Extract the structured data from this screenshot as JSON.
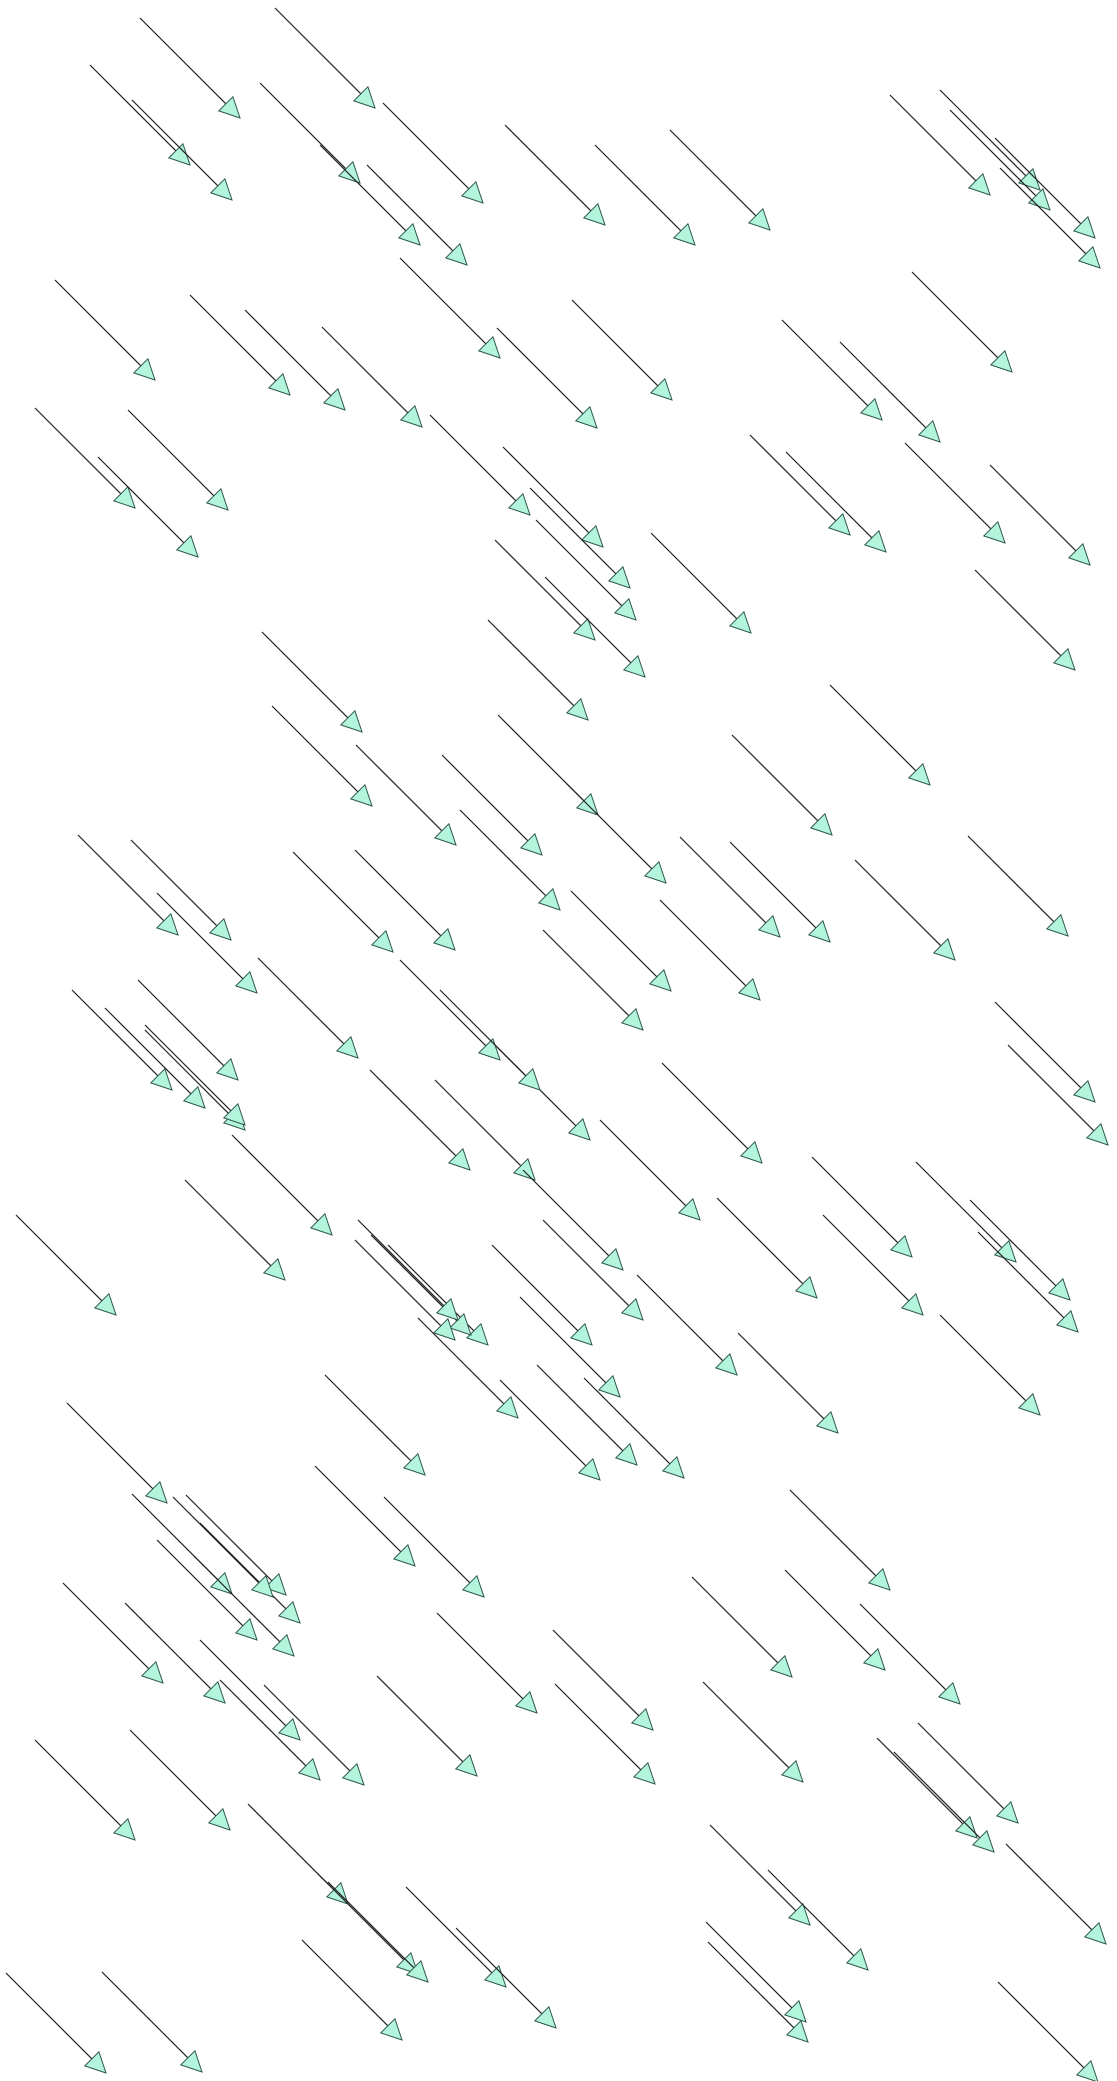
{
  "diagram": {
    "background": "#ffffff",
    "arrow_color": "#222222",
    "arrowhead_fill": "#b3f5dc",
    "arrowhead_stroke": "#2f5a4a",
    "element_type": "arrow",
    "arrow_count": 160
  }
}
